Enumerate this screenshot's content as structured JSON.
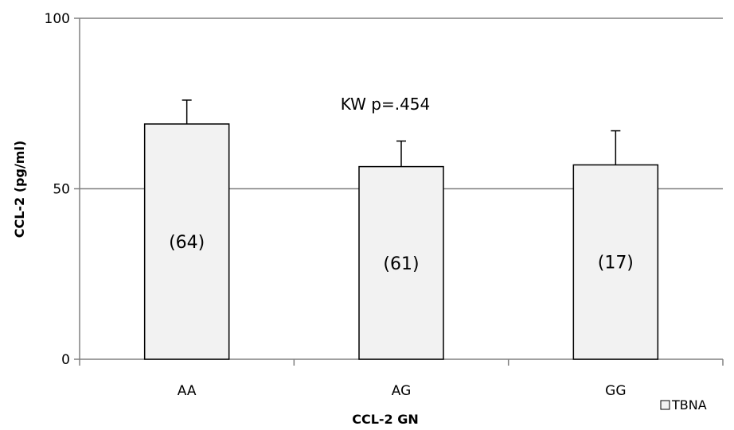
{
  "chart_data": {
    "type": "bar",
    "title": "",
    "xlabel": "CCL-2 GN",
    "ylabel": "CCL-2 (pg/ml)",
    "ylim": [
      0,
      100
    ],
    "yticks": [
      0,
      50,
      100
    ],
    "grid": true,
    "legend_position": "bottom-right",
    "categories": [
      "AA",
      "AG",
      "GG"
    ],
    "series": [
      {
        "name": "TBNA",
        "values": [
          69,
          56.5,
          57
        ],
        "error_plus": [
          7,
          7.5,
          10
        ],
        "data_labels": [
          "(64)",
          "(61)",
          "(17)"
        ]
      }
    ],
    "annotations": [
      "KW p=.454"
    ],
    "colors": {
      "bar_fill": "#f2f2f2",
      "bar_stroke": "#000000",
      "grid": "#808080",
      "axis": "#808080"
    }
  }
}
